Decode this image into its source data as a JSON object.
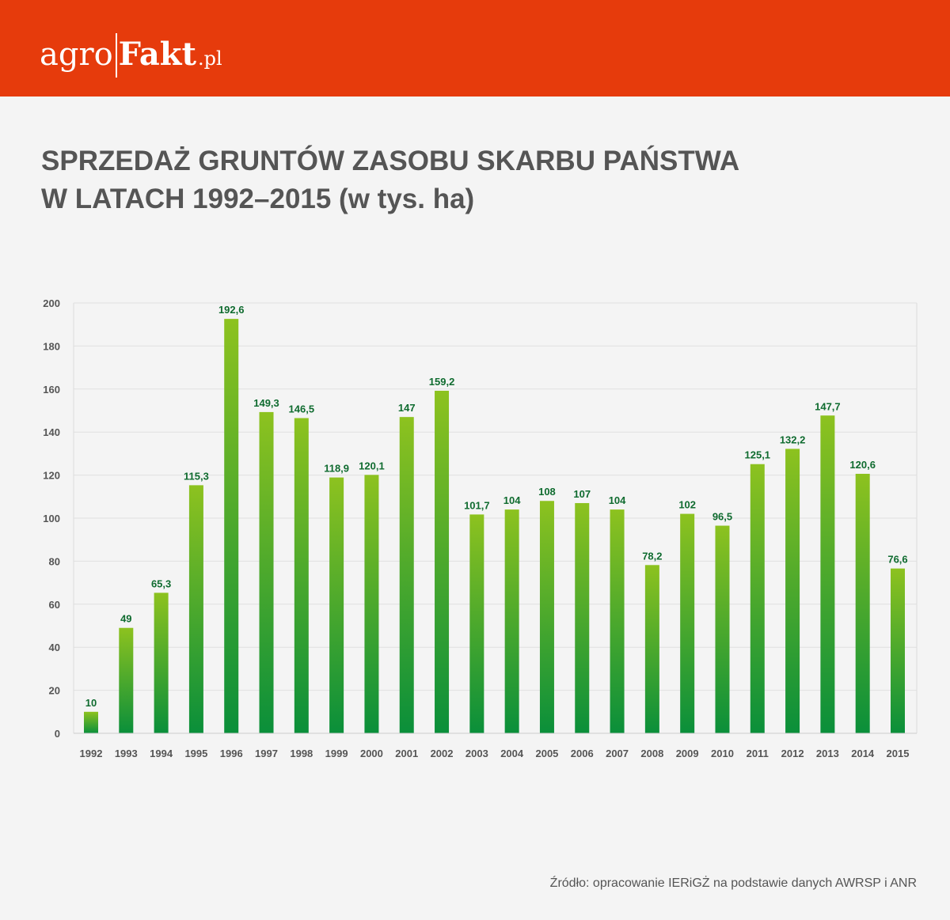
{
  "logo": {
    "part1": "agro",
    "part2": "Fakt",
    "part3": ".pl"
  },
  "title": {
    "line1": "SPRZEDAŻ GRUNTÓW ZASOBU SKARBU PAŃSTWA",
    "line2": "W LATACH 1992–2015 (w tys. ha)"
  },
  "source": "Źródło: opracowanie IERiGŻ na podstawie danych AWRSP i ANR",
  "colors": {
    "header": "#e63b0c",
    "bar_top": "#8dc21f",
    "bar_bottom": "#0a8f3a",
    "value_label": "#0f6b2f",
    "text": "#555555"
  },
  "chart_data": {
    "type": "bar",
    "categories": [
      "1992",
      "1993",
      "1994",
      "1995",
      "1996",
      "1997",
      "1998",
      "1999",
      "2000",
      "2001",
      "2002",
      "2003",
      "2004",
      "2005",
      "2006",
      "2007",
      "2008",
      "2009",
      "2010",
      "2011",
      "2012",
      "2013",
      "2014",
      "2015"
    ],
    "values": [
      10,
      49,
      65.3,
      115.3,
      192.6,
      149.3,
      146.5,
      118.9,
      120.1,
      147,
      159.2,
      101.7,
      104,
      108,
      107,
      104,
      78.2,
      102,
      96.5,
      125.1,
      132.2,
      147.7,
      120.6,
      76.6
    ],
    "value_labels": [
      "10",
      "49",
      "65,3",
      "115,3",
      "192,6",
      "149,3",
      "146,5",
      "118,9",
      "120,1",
      "147",
      "159,2",
      "101,7",
      "104",
      "108",
      "107",
      "104",
      "78,2",
      "102",
      "96,5",
      "125,1",
      "132,2",
      "147,7",
      "120,6",
      "76,6"
    ],
    "y_ticks": [
      "0",
      "20",
      "40",
      "60",
      "80",
      "100",
      "120",
      "140",
      "160",
      "180",
      "200"
    ],
    "ylim": [
      0,
      200
    ],
    "grid": true,
    "title": "SPRZEDAŻ GRUNTÓW ZASOBU SKARBU PAŃSTWA W LATACH 1992–2015 (w tys. ha)",
    "xlabel": "",
    "ylabel": ""
  }
}
